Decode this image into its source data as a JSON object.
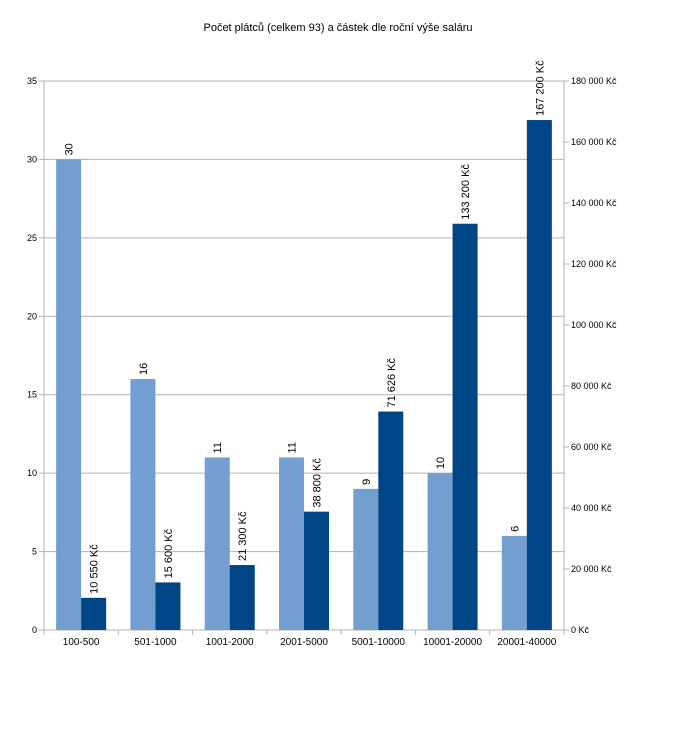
{
  "chart_data": {
    "type": "bar",
    "title": "Počet plátců (celkem 93) a částek dle roční výše saláru",
    "categories": [
      "100-500",
      "501-1000",
      "1001-2000",
      "2001-5000",
      "5001-10000",
      "10001-20000",
      "20001-40000"
    ],
    "series": [
      {
        "values": [
          30,
          16,
          11,
          11,
          9,
          10,
          6
        ],
        "labels": [
          "30",
          "16",
          "11",
          "11",
          "9",
          "10",
          "6"
        ],
        "axis": "left",
        "color": "#729fcf"
      },
      {
        "values": [
          10550,
          15600,
          21300,
          38800,
          71626,
          133200,
          167200
        ],
        "labels": [
          "10 550 Kč",
          "15 600 Kč",
          "21 300 Kč",
          "38 800 Kč",
          "71 626 Kč",
          "133 200 Kč",
          "167 200 Kč"
        ],
        "axis": "right",
        "color": "#004586"
      }
    ],
    "y_left": {
      "ylim": [
        0,
        35
      ],
      "ticks": [
        "0",
        "5",
        "10",
        "15",
        "20",
        "25",
        "30",
        "35"
      ]
    },
    "y_right": {
      "ylim": [
        0,
        180000
      ],
      "ticks": [
        "0 Kč",
        "20 000 Kč",
        "40 000 Kč",
        "60 000 Kč",
        "80 000 Kč",
        "100 000 Kč",
        "120 000 Kč",
        "140 000 Kč",
        "160 000 Kč",
        "180 000 Kč"
      ]
    },
    "grid": true,
    "legend": "none",
    "gridline_color": "#b3b3b3"
  }
}
